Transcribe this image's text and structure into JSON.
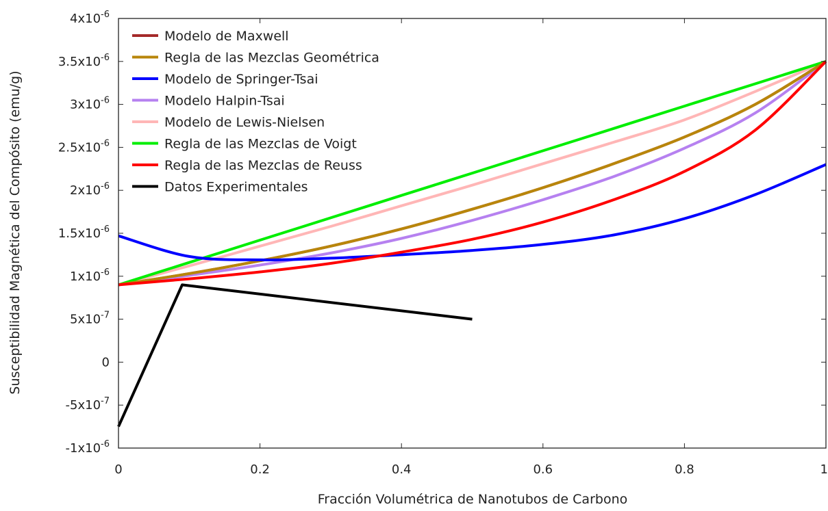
{
  "chart_data": {
    "type": "line",
    "title": "",
    "xlabel": "Fracción Volumétrica de Nanotubos de Carbono",
    "ylabel": "Susceptibilidad Magnética del Compósito (emu/g)",
    "xlim": [
      0,
      1
    ],
    "ylim": [
      -1e-06,
      4e-06
    ],
    "grid": false,
    "legend_position": "top-left",
    "x_ticks": [
      {
        "value": 0,
        "label": "0"
      },
      {
        "value": 0.2,
        "label": "0.2"
      },
      {
        "value": 0.4,
        "label": "0.4"
      },
      {
        "value": 0.6,
        "label": "0.6"
      },
      {
        "value": 0.8,
        "label": "0.8"
      },
      {
        "value": 1,
        "label": "1"
      }
    ],
    "y_ticks": [
      {
        "value": -1e-06,
        "mant": "-1x10",
        "exp": "-6"
      },
      {
        "value": -5e-07,
        "mant": "-5x10",
        "exp": "-7"
      },
      {
        "value": 0,
        "mant": "0",
        "exp": ""
      },
      {
        "value": 5e-07,
        "mant": "5x10",
        "exp": "-7"
      },
      {
        "value": 1e-06,
        "mant": "1x10",
        "exp": "-6"
      },
      {
        "value": 1.5e-06,
        "mant": "1.5x10",
        "exp": "-6"
      },
      {
        "value": 2e-06,
        "mant": "2x10",
        "exp": "-6"
      },
      {
        "value": 2.5e-06,
        "mant": "2.5x10",
        "exp": "-6"
      },
      {
        "value": 3e-06,
        "mant": "3x10",
        "exp": "-6"
      },
      {
        "value": 3.5e-06,
        "mant": "3.5x10",
        "exp": "-6"
      },
      {
        "value": 4e-06,
        "mant": "4x10",
        "exp": "-6"
      }
    ],
    "x": [
      0,
      0.1,
      0.2,
      0.3,
      0.4,
      0.5,
      0.6,
      0.7,
      0.8,
      0.9,
      1.0
    ],
    "series": [
      {
        "name": "Modelo de Maxwell",
        "color": "#a52a2a",
        "key": "maxwell",
        "values": [
          9e-07,
          1.03e-06,
          1.18e-06,
          1.35e-06,
          1.55e-06,
          1.78e-06,
          2.03e-06,
          2.31e-06,
          2.62e-06,
          3e-06,
          3.5e-06
        ]
      },
      {
        "name": "Regla de las Mezclas Geométrica",
        "color": "#b8860b",
        "key": "geometrica",
        "values": [
          9e-07,
          1.03e-06,
          1.18e-06,
          1.35e-06,
          1.55e-06,
          1.78e-06,
          2.03e-06,
          2.31e-06,
          2.62e-06,
          3e-06,
          3.5e-06
        ]
      },
      {
        "name": "Modelo de Springer-Tsai",
        "color": "#0000ff",
        "key": "springer",
        "values": [
          1.47e-06,
          1.23e-06,
          1.19e-06,
          1.21e-06,
          1.25e-06,
          1.3e-06,
          1.37e-06,
          1.48e-06,
          1.67e-06,
          1.95e-06,
          2.3e-06
        ]
      },
      {
        "name": "Modelo Halpin-Tsai",
        "color": "#b681f0",
        "key": "halpin",
        "values": [
          9e-07,
          1.01e-06,
          1.13e-06,
          1.27e-06,
          1.44e-06,
          1.65e-06,
          1.89e-06,
          2.16e-06,
          2.49e-06,
          2.9e-06,
          3.5e-06
        ]
      },
      {
        "name": "Modelo de Lewis-Nielsen",
        "color": "#ffb6b6",
        "key": "lewis",
        "values": [
          9e-07,
          1.12e-06,
          1.35e-06,
          1.58e-06,
          1.82e-06,
          2.06e-06,
          2.31e-06,
          2.56e-06,
          2.82e-06,
          3.15e-06,
          3.5e-06
        ]
      },
      {
        "name": "Regla de las Mezclas de Voigt",
        "color": "#00ee00",
        "key": "voigt",
        "values": [
          9e-07,
          1.16e-06,
          1.42e-06,
          1.68e-06,
          1.94e-06,
          2.2e-06,
          2.46e-06,
          2.72e-06,
          2.98e-06,
          3.24e-06,
          3.5e-06
        ]
      },
      {
        "name": "Regla de las Mezclas de Reuss",
        "color": "#ff0000",
        "key": "reuss",
        "values": [
          9e-07,
          9.7e-07,
          1.05e-06,
          1.15e-06,
          1.28e-06,
          1.43e-06,
          1.63e-06,
          1.89e-06,
          2.22e-06,
          2.7e-06,
          3.5e-06
        ]
      },
      {
        "name": "Datos Experimentales",
        "color": "#000000",
        "key": "experimental",
        "x": [
          0,
          0.09,
          0.5
        ],
        "values": [
          -7.5e-07,
          9e-07,
          5e-07
        ]
      }
    ]
  }
}
